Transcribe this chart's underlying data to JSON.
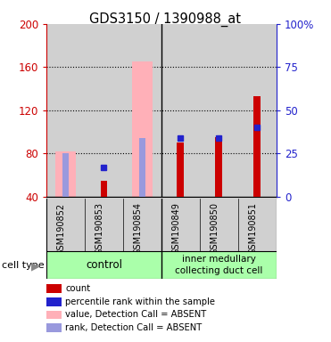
{
  "title": "GDS3150 / 1390988_at",
  "samples": [
    "GSM190852",
    "GSM190853",
    "GSM190854",
    "GSM190849",
    "GSM190850",
    "GSM190851"
  ],
  "ylim_left": [
    40,
    200
  ],
  "ylim_right": [
    0,
    100
  ],
  "yticks_left": [
    40,
    80,
    120,
    160,
    200
  ],
  "yticks_right": [
    0,
    25,
    50,
    75,
    100
  ],
  "yticklabels_right": [
    "0",
    "25",
    "50",
    "75",
    "100%"
  ],
  "count_values": [
    null,
    55,
    null,
    90,
    95,
    133
  ],
  "percentile_values": [
    null,
    17,
    null,
    34,
    34,
    40
  ],
  "value_absent": [
    82,
    null,
    165,
    null,
    null,
    null
  ],
  "rank_absent_pct": [
    25,
    null,
    34,
    null,
    null,
    null
  ],
  "wide_bar_width": 0.55,
  "narrow_bar_width": 0.18,
  "count_color": "#cc0000",
  "percentile_color": "#2222cc",
  "value_absent_color": "#ffb0b8",
  "rank_absent_color": "#9999dd",
  "bg_sample": "#d0d0d0",
  "bg_group_color": "#aaffaa",
  "left_axis_color": "#cc0000",
  "right_axis_color": "#2222cc",
  "dotted_lines": [
    80,
    120,
    160
  ],
  "legend_items": [
    {
      "label": "count",
      "color": "#cc0000"
    },
    {
      "label": "percentile rank within the sample",
      "color": "#2222cc"
    },
    {
      "label": "value, Detection Call = ABSENT",
      "color": "#ffb0b8"
    },
    {
      "label": "rank, Detection Call = ABSENT",
      "color": "#9999dd"
    }
  ]
}
